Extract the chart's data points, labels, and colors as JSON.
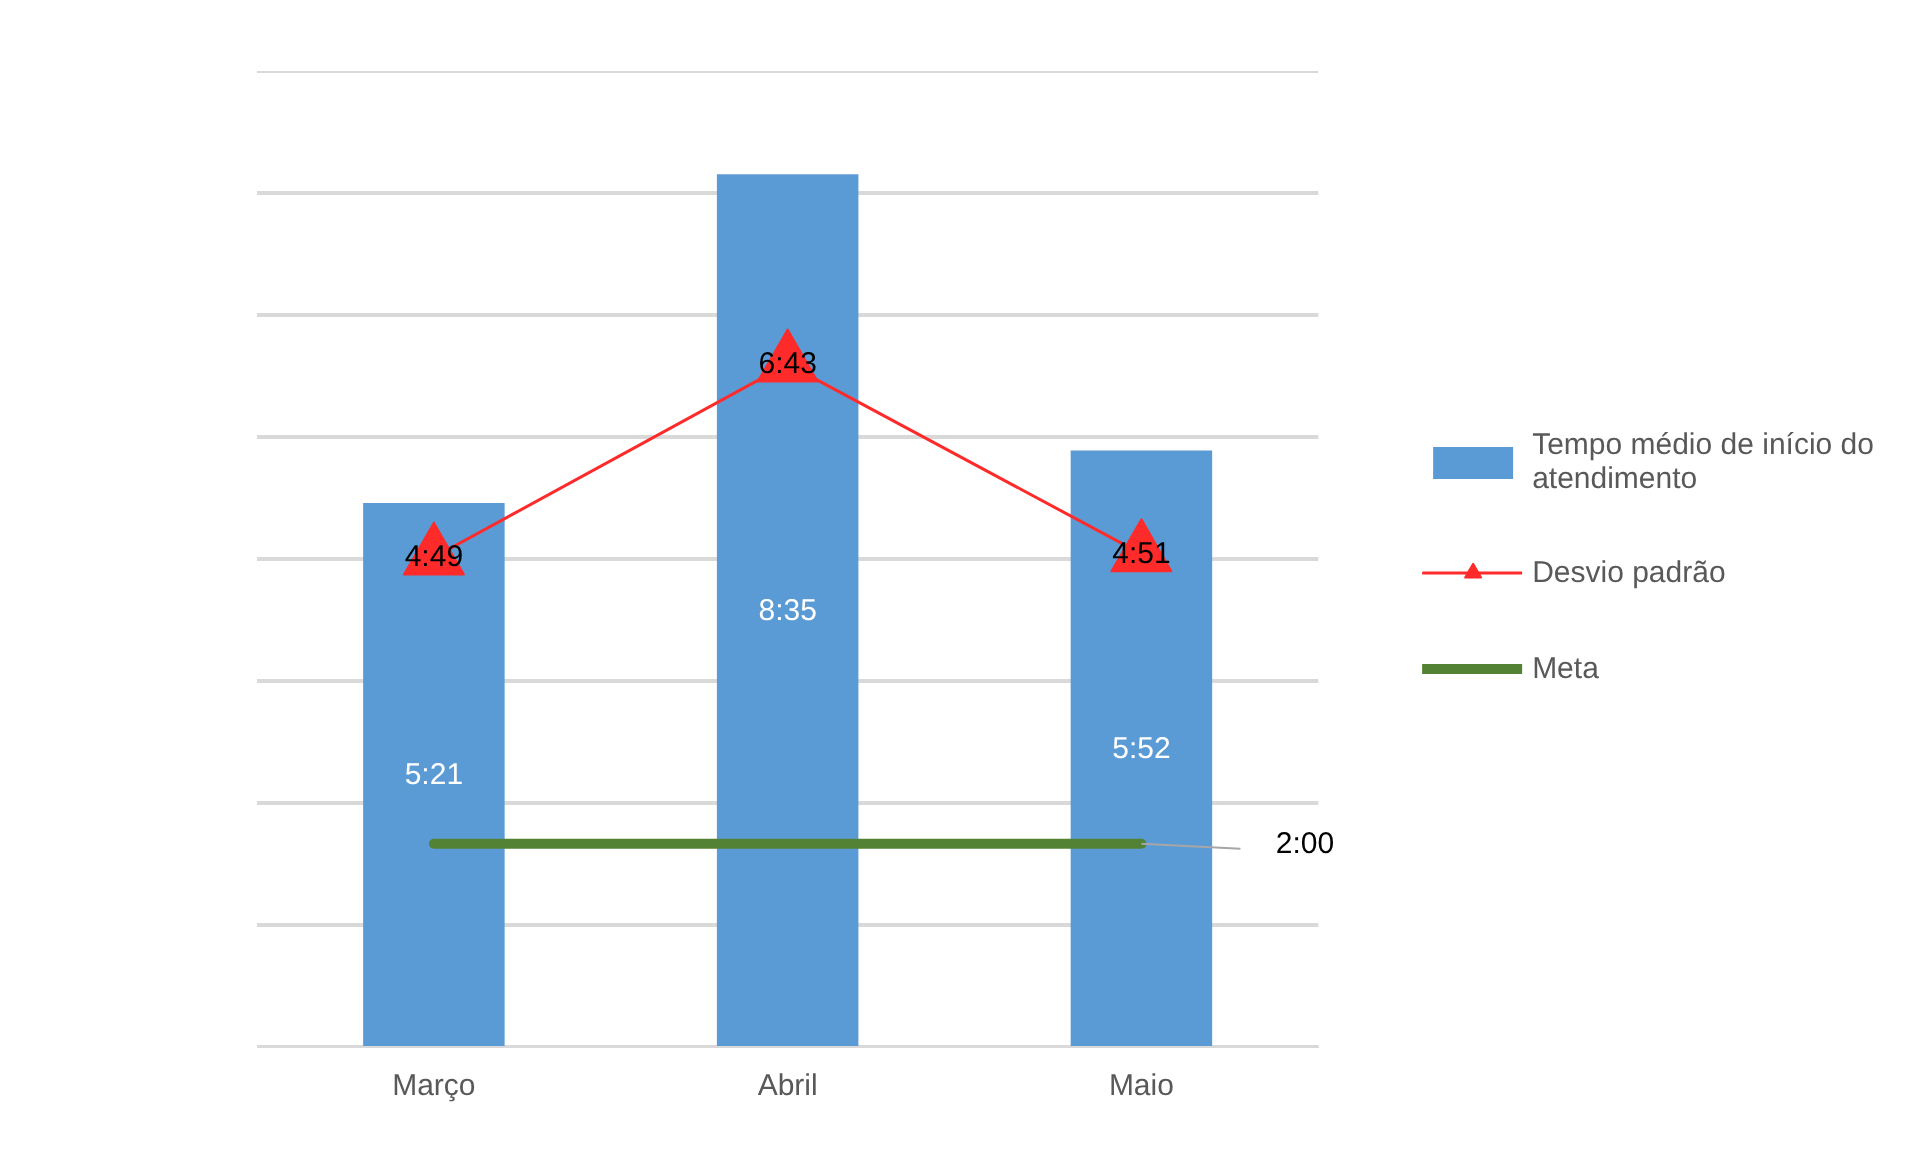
{
  "chart_data": {
    "type": "bar",
    "categories": [
      "Março",
      "Abril",
      "Maio"
    ],
    "ylim": [
      0,
      9.6
    ],
    "yticks": [
      {
        "value": 0,
        "label": null
      },
      {
        "value": 1.2,
        "label": null
      },
      {
        "value": 2.4,
        "label": null
      },
      {
        "value": 3.6,
        "label": null
      },
      {
        "value": 4.8,
        "label": null
      },
      {
        "value": 6,
        "label": null
      },
      {
        "value": 7.2,
        "label": null
      },
      {
        "value": 8.4,
        "label": null
      },
      {
        "value": 9.6,
        "label": null
      }
    ],
    "tick_labels": "x",
    "grid": "y",
    "legend": "right",
    "series": [
      {
        "name": "Tempo médio de início do atendimento",
        "color": "#5b9bd5",
        "values": [
          5.35,
          8.5833,
          5.8667
        ],
        "value_labels": [
          "5:21",
          "8:35",
          "5:52"
        ]
      },
      {
        "name": "Desvio padrão",
        "type": "line",
        "marker": "triangle",
        "color": "#ff2a2a",
        "values": [
          4.8167,
          6.7167,
          4.85
        ],
        "value_labels": [
          "4:49",
          "6:43",
          "4:51"
        ]
      },
      {
        "name": "Meta",
        "type": "line",
        "marker": "none",
        "color": "#548235",
        "values": [
          2,
          2,
          2
        ],
        "value_labels": [
          null,
          null,
          "2:00"
        ]
      }
    ]
  }
}
